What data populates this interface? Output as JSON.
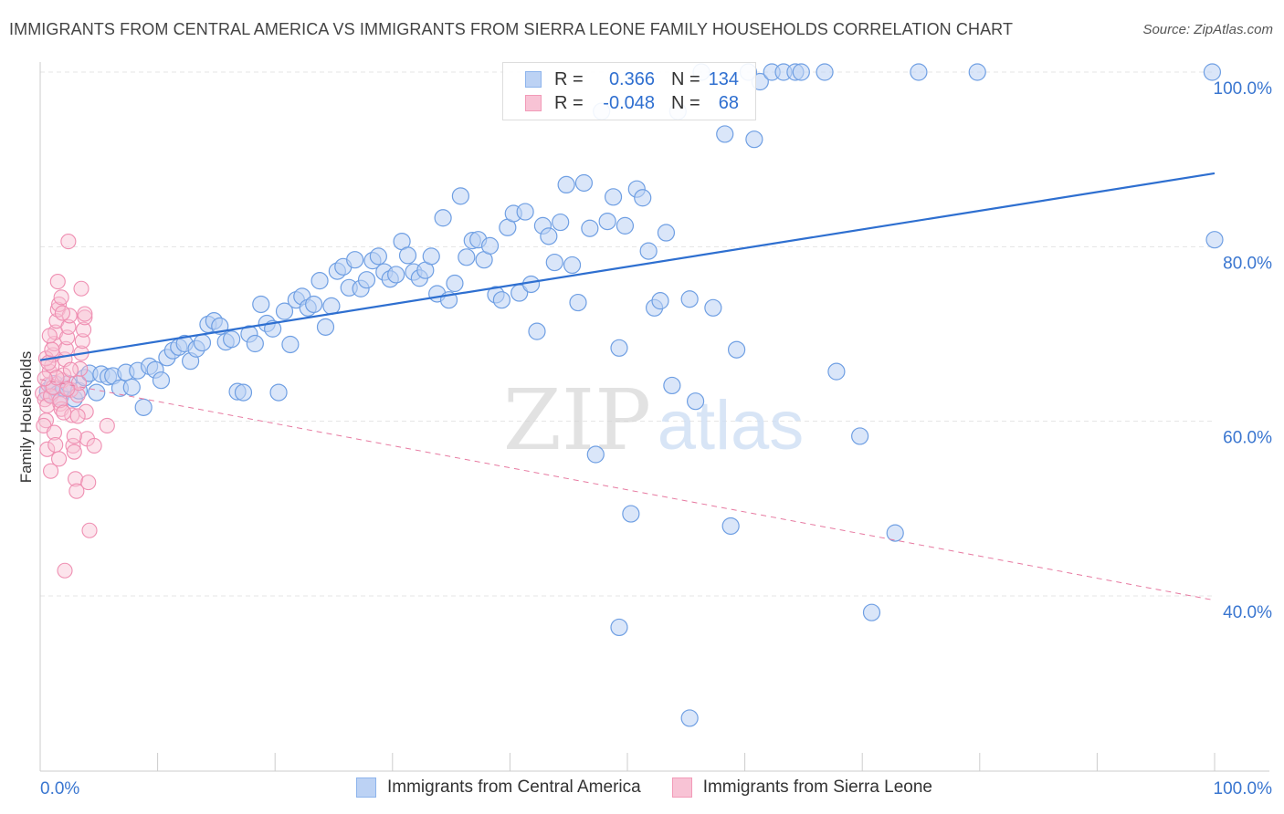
{
  "title": "IMMIGRANTS FROM CENTRAL AMERICA VS IMMIGRANTS FROM SIERRA LEONE FAMILY HOUSEHOLDS CORRELATION CHART",
  "source": "Source: ZipAtlas.com",
  "watermark": {
    "zip": "ZIP",
    "atlas": "atlas"
  },
  "legend": {
    "r_label": "R =",
    "n_label": "N =",
    "rows": [
      {
        "name": "Immigrants from Central America",
        "r": "0.366",
        "n": "134",
        "color": "#8db4ec",
        "fill": "#bcd2f4"
      },
      {
        "name": "Immigrants from Sierra Leone",
        "r": "-0.048",
        "n": "68",
        "color": "#f29ab8",
        "fill": "#f8c3d5"
      }
    ]
  },
  "chart_data": {
    "type": "scatter",
    "title": "IMMIGRANTS FROM CENTRAL AMERICA VS IMMIGRANTS FROM SIERRA LEONE FAMILY HOUSEHOLDS CORRELATION CHART",
    "xlabel": "",
    "ylabel": "Family Households",
    "xlim": [
      0,
      100
    ],
    "ylim": [
      20,
      102
    ],
    "x_tick_labels": {
      "left": "0.0%",
      "right": "100.0%"
    },
    "y_ticks": [
      {
        "value": 40,
        "label": "40.0%"
      },
      {
        "value": 60,
        "label": "60.0%"
      },
      {
        "value": 80,
        "label": "80.0%"
      },
      {
        "value": 100,
        "label": "100.0%"
      }
    ],
    "grid": true,
    "series": [
      {
        "name": "Immigrants from Central America",
        "color": "#5b8fdc",
        "trend": {
          "x": [
            0,
            100
          ],
          "y": [
            67.0,
            88.4
          ],
          "style": "solid"
        },
        "points": [
          [
            0.8,
            63.4
          ],
          [
            1.2,
            64.1
          ],
          [
            1.6,
            63.0
          ],
          [
            2.0,
            63.8
          ],
          [
            2.4,
            64.3
          ],
          [
            2.9,
            62.6
          ],
          [
            3.3,
            63.5
          ],
          [
            3.8,
            65.0
          ],
          [
            4.2,
            65.5
          ],
          [
            4.8,
            63.3
          ],
          [
            5.2,
            65.4
          ],
          [
            5.8,
            65.1
          ],
          [
            6.2,
            65.2
          ],
          [
            6.8,
            63.8
          ],
          [
            7.3,
            65.6
          ],
          [
            7.8,
            63.9
          ],
          [
            8.3,
            65.8
          ],
          [
            8.8,
            61.6
          ],
          [
            9.3,
            66.3
          ],
          [
            9.8,
            65.9
          ],
          [
            10.3,
            64.7
          ],
          [
            10.8,
            67.3
          ],
          [
            11.3,
            68.1
          ],
          [
            11.8,
            68.5
          ],
          [
            12.3,
            68.9
          ],
          [
            12.8,
            66.9
          ],
          [
            13.3,
            68.3
          ],
          [
            13.8,
            69.0
          ],
          [
            14.3,
            71.1
          ],
          [
            14.8,
            71.5
          ],
          [
            15.3,
            70.9
          ],
          [
            15.8,
            69.1
          ],
          [
            16.3,
            69.4
          ],
          [
            16.8,
            63.4
          ],
          [
            17.3,
            63.3
          ],
          [
            17.8,
            70.0
          ],
          [
            18.3,
            68.9
          ],
          [
            18.8,
            73.4
          ],
          [
            19.3,
            71.2
          ],
          [
            19.8,
            70.6
          ],
          [
            20.3,
            63.3
          ],
          [
            20.8,
            72.6
          ],
          [
            21.3,
            68.8
          ],
          [
            21.8,
            73.9
          ],
          [
            22.3,
            74.3
          ],
          [
            22.8,
            73.0
          ],
          [
            23.3,
            73.4
          ],
          [
            23.8,
            76.1
          ],
          [
            24.3,
            70.8
          ],
          [
            24.8,
            73.2
          ],
          [
            25.3,
            77.2
          ],
          [
            25.8,
            77.7
          ],
          [
            26.3,
            75.3
          ],
          [
            26.8,
            78.5
          ],
          [
            27.3,
            75.2
          ],
          [
            27.8,
            76.2
          ],
          [
            28.3,
            78.4
          ],
          [
            28.8,
            78.9
          ],
          [
            29.3,
            77.1
          ],
          [
            29.8,
            76.3
          ],
          [
            30.3,
            76.8
          ],
          [
            30.8,
            80.6
          ],
          [
            31.3,
            79.0
          ],
          [
            31.8,
            77.1
          ],
          [
            32.3,
            76.4
          ],
          [
            32.8,
            77.3
          ],
          [
            33.3,
            78.9
          ],
          [
            33.8,
            74.6
          ],
          [
            34.3,
            83.3
          ],
          [
            34.8,
            73.9
          ],
          [
            35.3,
            75.8
          ],
          [
            35.8,
            85.8
          ],
          [
            36.3,
            78.8
          ],
          [
            36.8,
            80.7
          ],
          [
            37.3,
            80.8
          ],
          [
            37.8,
            78.5
          ],
          [
            38.3,
            80.1
          ],
          [
            38.8,
            74.5
          ],
          [
            39.3,
            73.9
          ],
          [
            39.8,
            82.2
          ],
          [
            40.3,
            83.8
          ],
          [
            40.8,
            74.7
          ],
          [
            41.3,
            84.0
          ],
          [
            41.8,
            75.7
          ],
          [
            42.3,
            70.3
          ],
          [
            42.8,
            82.4
          ],
          [
            43.3,
            81.2
          ],
          [
            43.8,
            78.2
          ],
          [
            44.3,
            82.8
          ],
          [
            44.8,
            87.1
          ],
          [
            45.3,
            77.9
          ],
          [
            45.8,
            73.6
          ],
          [
            46.3,
            87.3
          ],
          [
            46.8,
            82.1
          ],
          [
            47.3,
            56.2
          ],
          [
            47.8,
            95.5
          ],
          [
            48.3,
            82.9
          ],
          [
            48.8,
            85.7
          ],
          [
            49.3,
            68.4
          ],
          [
            49.8,
            82.4
          ],
          [
            50.3,
            49.4
          ],
          [
            50.8,
            86.6
          ],
          [
            51.3,
            85.6
          ],
          [
            51.8,
            79.5
          ],
          [
            52.3,
            73.0
          ],
          [
            52.8,
            73.8
          ],
          [
            53.3,
            81.6
          ],
          [
            53.8,
            64.1
          ],
          [
            54.3,
            95.5
          ],
          [
            55.3,
            74.0
          ],
          [
            55.8,
            62.3
          ],
          [
            57.3,
            73.0
          ],
          [
            58.3,
            92.9
          ],
          [
            58.8,
            48.0
          ],
          [
            59.3,
            68.2
          ],
          [
            60.8,
            92.3
          ],
          [
            61.3,
            98.9
          ],
          [
            62.3,
            100.0
          ],
          [
            63.3,
            100.0
          ],
          [
            64.3,
            100.0
          ],
          [
            64.8,
            100.0
          ],
          [
            66.8,
            100.0
          ],
          [
            67.8,
            65.7
          ],
          [
            69.8,
            58.3
          ],
          [
            70.8,
            38.1
          ],
          [
            72.8,
            47.2
          ],
          [
            74.8,
            100.0
          ],
          [
            79.8,
            100.0
          ],
          [
            99.8,
            100.0
          ],
          [
            100.0,
            80.8
          ],
          [
            55.3,
            26.0
          ],
          [
            49.3,
            36.4
          ],
          [
            60.3,
            100.0
          ],
          [
            56.3,
            100.0
          ]
        ]
      },
      {
        "name": "Immigrants from Sierra Leone",
        "color": "#ee8aad",
        "trend": {
          "x": [
            0,
            100
          ],
          "y": [
            64.8,
            39.5
          ],
          "style": "dashed"
        },
        "points": [
          [
            0.2,
            63.2
          ],
          [
            0.4,
            62.5
          ],
          [
            0.5,
            60.1
          ],
          [
            0.6,
            61.8
          ],
          [
            0.7,
            64.2
          ],
          [
            0.8,
            65.7
          ],
          [
            0.9,
            62.9
          ],
          [
            1.0,
            66.4
          ],
          [
            1.1,
            67.6
          ],
          [
            1.2,
            68.9
          ],
          [
            1.3,
            70.2
          ],
          [
            1.4,
            71.5
          ],
          [
            1.5,
            72.8
          ],
          [
            1.6,
            73.4
          ],
          [
            1.7,
            62.0
          ],
          [
            1.8,
            61.4
          ],
          [
            1.9,
            64.7
          ],
          [
            2.0,
            65.3
          ],
          [
            2.1,
            67.1
          ],
          [
            2.2,
            68.3
          ],
          [
            2.3,
            69.6
          ],
          [
            2.4,
            70.8
          ],
          [
            2.5,
            72.1
          ],
          [
            2.6,
            63.6
          ],
          [
            2.7,
            60.7
          ],
          [
            2.8,
            57.2
          ],
          [
            2.9,
            56.5
          ],
          [
            3.0,
            53.4
          ],
          [
            3.1,
            52.0
          ],
          [
            3.2,
            63.0
          ],
          [
            3.3,
            64.4
          ],
          [
            3.4,
            66.0
          ],
          [
            3.5,
            67.8
          ],
          [
            3.6,
            69.2
          ],
          [
            3.7,
            70.5
          ],
          [
            3.8,
            71.9
          ],
          [
            3.9,
            61.1
          ],
          [
            4.0,
            58.0
          ],
          [
            4.1,
            53.0
          ],
          [
            4.2,
            47.5
          ],
          [
            0.3,
            59.5
          ],
          [
            0.6,
            56.8
          ],
          [
            0.9,
            54.3
          ],
          [
            1.2,
            58.7
          ],
          [
            1.5,
            76.0
          ],
          [
            1.8,
            74.2
          ],
          [
            2.1,
            42.9
          ],
          [
            2.4,
            80.6
          ],
          [
            3.5,
            75.2
          ],
          [
            3.8,
            72.3
          ],
          [
            4.6,
            57.2
          ],
          [
            5.7,
            59.5
          ],
          [
            0.5,
            67.2
          ],
          [
            0.8,
            69.8
          ],
          [
            1.1,
            63.9
          ],
          [
            1.4,
            65.0
          ],
          [
            1.7,
            62.4
          ],
          [
            2.0,
            61.0
          ],
          [
            2.3,
            63.7
          ],
          [
            2.6,
            65.9
          ],
          [
            2.9,
            58.3
          ],
          [
            3.2,
            60.6
          ],
          [
            0.4,
            64.9
          ],
          [
            0.7,
            66.7
          ],
          [
            1.0,
            68.2
          ],
          [
            1.3,
            57.3
          ],
          [
            1.6,
            55.7
          ],
          [
            1.9,
            72.4
          ]
        ]
      }
    ]
  }
}
